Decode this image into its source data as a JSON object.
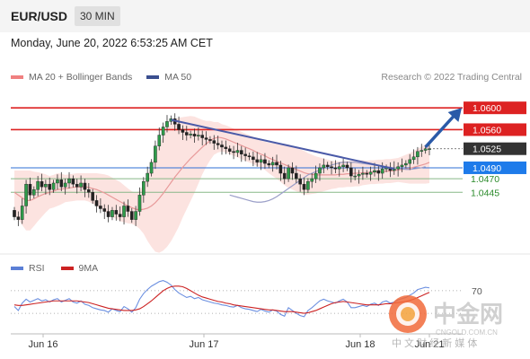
{
  "header": {
    "symbol": "EUR/USD",
    "timeframe": "30 MIN"
  },
  "datetime": "Monday, June 20, 2022 6:53:25 AM CET",
  "legend": {
    "items": [
      {
        "label": "MA 20 + Bollinger Bands",
        "color": "#f08080"
      },
      {
        "label": "MA 50",
        "color": "#3a4f8f"
      }
    ]
  },
  "credit": "Research © 2022 Trading Central",
  "rsi_legend": {
    "items": [
      {
        "label": "RSI",
        "color": "#5b7fd6"
      },
      {
        "label": "9MA",
        "color": "#cc2222"
      }
    ]
  },
  "watermark": {
    "text": "中金网",
    "sub": "CNGOLD.COM.CN",
    "slogan": "中 文 财 经 新 媒 体"
  },
  "chart_data": [
    {
      "type": "candlestick",
      "ylim": [
        1.0345,
        1.0625
      ],
      "x_ticks": [
        "Jun 16",
        "Jun 17",
        "Jun 18",
        "Jun 21"
      ],
      "levels": [
        {
          "value": 1.06,
          "label": "1.0600",
          "style": "resistance"
        },
        {
          "value": 1.056,
          "label": "1.0560",
          "style": "resistance"
        },
        {
          "value": 1.0525,
          "label": "1.0525",
          "style": "last"
        },
        {
          "value": 1.049,
          "label": "1.0490",
          "style": "pivot"
        },
        {
          "value": 1.047,
          "label": "1.0470",
          "style": "support"
        },
        {
          "value": 1.0445,
          "label": "1.0445",
          "style": "support"
        }
      ],
      "closes": [
        1.04,
        1.0395,
        1.042,
        1.046,
        1.044,
        1.045,
        1.0465,
        1.0455,
        1.046,
        1.045,
        1.0462,
        1.0468,
        1.0455,
        1.0462,
        1.047,
        1.046,
        1.0455,
        1.0462,
        1.045,
        1.0445,
        1.043,
        1.042,
        1.0415,
        1.041,
        1.04,
        1.0412,
        1.0405,
        1.04,
        1.042,
        1.041,
        1.0395,
        1.041,
        1.044,
        1.0465,
        1.048,
        1.05,
        1.053,
        1.055,
        1.0565,
        1.0575,
        1.058,
        1.057,
        1.056,
        1.0555,
        1.055,
        1.0552,
        1.0548,
        1.055,
        1.0545,
        1.0542,
        1.054,
        1.0535,
        1.0532,
        1.0528,
        1.0525,
        1.052,
        1.0518,
        1.0522,
        1.0515,
        1.0512,
        1.051,
        1.0505,
        1.05,
        1.0505,
        1.0498,
        1.0495,
        1.05,
        1.0495,
        1.048,
        1.047,
        1.049,
        1.048,
        1.047,
        1.046,
        1.045,
        1.0465,
        1.047,
        1.048,
        1.049,
        1.0495,
        1.0492,
        1.049,
        1.0488,
        1.0492,
        1.0495,
        1.049,
        1.0475,
        1.0475,
        1.0478,
        1.048,
        1.0478,
        1.0482,
        1.0485,
        1.048,
        1.0488,
        1.049,
        1.0485,
        1.0488,
        1.0492,
        1.0495,
        1.0498,
        1.0505,
        1.051,
        1.052,
        1.0522,
        1.0525,
        1.0525
      ],
      "ma20": [
        1.0445,
        1.044,
        1.0435,
        1.043,
        1.043,
        1.0433,
        1.0437,
        1.044,
        1.0443,
        1.0445,
        1.0447,
        1.045,
        1.0451,
        1.0452,
        1.0453,
        1.0454,
        1.0455,
        1.0455,
        1.0455,
        1.0454,
        1.0452,
        1.045,
        1.0447,
        1.0444,
        1.044,
        1.0436,
        1.0432,
        1.0428,
        1.0424,
        1.042,
        1.0417,
        1.0414,
        1.0413,
        1.0414,
        1.0416,
        1.042,
        1.0426,
        1.0434,
        1.0443,
        1.0453,
        1.0463,
        1.0473,
        1.0482,
        1.0491,
        1.0499,
        1.0507,
        1.0514,
        1.0521,
        1.0528,
        1.0534,
        1.054,
        1.0544,
        1.0546,
        1.0545,
        1.0543,
        1.054,
        1.0537,
        1.0534,
        1.0531,
        1.0528,
        1.0525,
        1.0522,
        1.0518,
        1.0515,
        1.0512,
        1.0508,
        1.0505,
        1.0502,
        1.0499,
        1.0496,
        1.0493,
        1.049,
        1.0487,
        1.0484,
        1.0481,
        1.0479,
        1.0478,
        1.0477,
        1.0477,
        1.0477,
        1.0477,
        1.0477,
        1.0477,
        1.0478,
        1.0478,
        1.0479,
        1.0479,
        1.048,
        1.048,
        1.0481,
        1.0481,
        1.0482,
        1.0482,
        1.0483,
        1.0483,
        1.0484,
        1.0484,
        1.0485,
        1.0486,
        1.0487,
        1.0488,
        1.0489,
        1.0491,
        1.0493,
        1.0495,
        1.0497,
        1.05
      ],
      "bb_width": [
        0.004,
        0.0045,
        0.005,
        0.0055,
        0.0055,
        0.005,
        0.0045,
        0.004,
        0.0035,
        0.003,
        0.003,
        0.003,
        0.0028,
        0.0025,
        0.0025,
        0.0025,
        0.0025,
        0.0025,
        0.0025,
        0.0026,
        0.0028,
        0.003,
        0.0032,
        0.0034,
        0.0036,
        0.0036,
        0.0036,
        0.0036,
        0.0034,
        0.0032,
        0.003,
        0.003,
        0.0035,
        0.0045,
        0.006,
        0.0075,
        0.009,
        0.01,
        0.0105,
        0.0108,
        0.0108,
        0.0105,
        0.01,
        0.0092,
        0.0085,
        0.0078,
        0.007,
        0.006,
        0.005,
        0.0042,
        0.0036,
        0.003,
        0.0028,
        0.0025,
        0.0025,
        0.0025,
        0.0025,
        0.0025,
        0.0025,
        0.0025,
        0.0025,
        0.0025,
        0.0025,
        0.0025,
        0.0026,
        0.0028,
        0.003,
        0.0032,
        0.0035,
        0.0038,
        0.004,
        0.004,
        0.004,
        0.004,
        0.004,
        0.0038,
        0.0036,
        0.0034,
        0.0032,
        0.003,
        0.0028,
        0.0026,
        0.0025,
        0.0024,
        0.0024,
        0.0024,
        0.0024,
        0.0024,
        0.0024,
        0.0023,
        0.0022,
        0.0022,
        0.0022,
        0.0022,
        0.0022,
        0.0022,
        0.0022,
        0.0022,
        0.0022,
        0.0024,
        0.0026,
        0.0028,
        0.003,
        0.0032,
        0.0034,
        0.0036,
        0.0038
      ],
      "ma50": [
        1.044,
        1.0438,
        1.0436,
        1.0434,
        1.0432,
        1.043,
        1.0428,
        1.0427,
        1.0427,
        1.0428,
        1.043,
        1.0433,
        1.0437,
        1.0442,
        1.0447,
        1.0452,
        1.0457,
        1.0462,
        1.0467,
        1.0472,
        1.0477,
        1.048,
        1.0483,
        1.0486,
        1.0489,
        1.0492,
        1.0495,
        1.0497,
        1.0499,
        1.05,
        1.05,
        1.05,
        1.05,
        1.0499,
        1.0498,
        1.0497,
        1.0496,
        1.0495,
        1.0494,
        1.0493,
        1.0492,
        1.0491,
        1.049,
        1.0489,
        1.0488,
        1.0487,
        1.0487,
        1.0488,
        1.0489,
        1.049,
        1.0492
      ],
      "ma50_start_index": 55,
      "trendlines": [
        {
          "from": [
            40,
            1.0578
          ],
          "to": [
            97,
            1.0488
          ]
        }
      ],
      "projection": {
        "from": [
          105,
          1.0528
        ],
        "to": [
          117,
          1.06
        ]
      }
    },
    {
      "type": "line",
      "ylim": [
        0,
        100
      ],
      "level": {
        "value": 70,
        "label": "70"
      },
      "series": [
        {
          "name": "RSI",
          "values": [
            42,
            35,
            48,
            55,
            50,
            53,
            56,
            52,
            54,
            50,
            54,
            56,
            50,
            53,
            56,
            50,
            48,
            52,
            46,
            44,
            40,
            38,
            36,
            35,
            32,
            38,
            35,
            33,
            42,
            38,
            32,
            40,
            55,
            65,
            72,
            78,
            82,
            86,
            88,
            85,
            80,
            72,
            66,
            62,
            58,
            60,
            56,
            58,
            54,
            52,
            50,
            48,
            47,
            45,
            44,
            42,
            41,
            44,
            40,
            38,
            37,
            35,
            33,
            37,
            34,
            32,
            36,
            34,
            28,
            25,
            40,
            35,
            30,
            26,
            24,
            35,
            40,
            46,
            52,
            55,
            52,
            50,
            48,
            52,
            55,
            50,
            40,
            40,
            42,
            44,
            42,
            46,
            48,
            44,
            50,
            52,
            48,
            50,
            54,
            56,
            58,
            62,
            66,
            72,
            74,
            76,
            75
          ]
        },
        {
          "name": "9MA",
          "values": [
            45,
            44,
            44,
            45,
            46,
            47,
            48,
            49,
            50,
            51,
            52,
            52,
            52,
            52,
            52,
            52,
            52,
            51,
            50,
            49,
            47,
            45,
            43,
            41,
            39,
            38,
            37,
            36,
            35,
            35,
            35,
            36,
            38,
            42,
            47,
            52,
            58,
            64,
            70,
            74,
            77,
            78,
            78,
            77,
            74,
            70,
            66,
            62,
            59,
            57,
            55,
            53,
            51,
            50,
            48,
            47,
            45,
            44,
            43,
            42,
            41,
            40,
            39,
            38,
            37,
            36,
            36,
            35,
            34,
            33,
            33,
            33,
            32,
            31,
            30,
            31,
            33,
            35,
            38,
            41,
            44,
            47,
            49,
            50,
            51,
            50,
            49,
            48,
            47,
            46,
            45,
            45,
            45,
            45,
            46,
            47,
            47,
            48,
            49,
            50,
            51,
            53,
            55,
            58,
            61,
            64,
            67
          ]
        }
      ]
    }
  ]
}
